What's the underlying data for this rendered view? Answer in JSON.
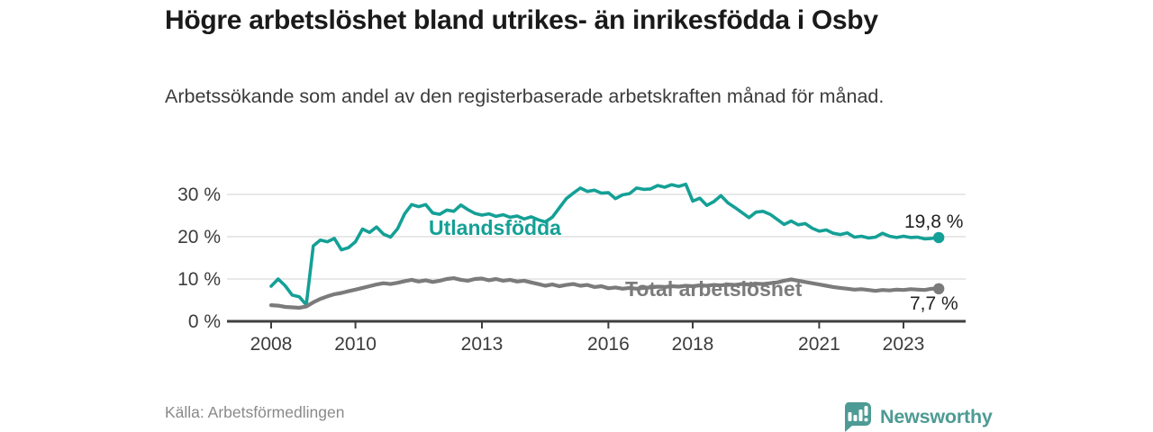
{
  "header": {
    "title": "Högre arbetslöshet bland utrikes- än inrikesfödda i Osby",
    "subtitle": "Arbetssökande som andel av den registerbaserade arbetskraften månad för månad."
  },
  "footer": {
    "source": "Källa: Arbetsförmedlingen",
    "brand": "Newsworthy"
  },
  "colors": {
    "accent_teal": "#14a096",
    "series_gray": "#7b7b7b",
    "axis": "#3f3f3f",
    "grid": "#dadada",
    "end_label_text": "#222222",
    "brand_teal": "#4d9b94",
    "title_text": "#1a1a1a",
    "muted_text": "#8a8a8a"
  },
  "chart_data": {
    "type": "line",
    "title": "Högre arbetslöshet bland utrikes- än inrikesfödda i Osby",
    "subtitle": "Arbetssökande som andel av den registerbaserade arbetskraften månad för månad.",
    "xlabel": "",
    "ylabel": "",
    "grid": "horizontal",
    "legend_position": "inline-labels",
    "x_start_year": 2008,
    "x_step_years": 0.1667,
    "x_end_year": 2023.67,
    "x_ticks": [
      2008,
      2010,
      2013,
      2016,
      2018,
      2021,
      2023
    ],
    "x_tick_labels": [
      "2008",
      "2010",
      "2013",
      "2016",
      "2018",
      "2021",
      "2023"
    ],
    "y_ticks": [
      0,
      10,
      20,
      30
    ],
    "y_tick_labels": [
      "0 %",
      "10 %",
      "20 %",
      "30 %"
    ],
    "ylim": [
      0,
      34
    ],
    "series": [
      {
        "name": "Utlandsfödda",
        "color": "#14a096",
        "end_value": 19.8,
        "end_label": "19,8 %",
        "values": [
          8.3,
          10.0,
          8.4,
          6.2,
          5.8,
          3.9,
          17.8,
          19.2,
          18.8,
          19.6,
          16.9,
          17.4,
          18.8,
          21.8,
          21.0,
          22.3,
          20.6,
          19.9,
          21.9,
          25.4,
          27.6,
          27.1,
          27.6,
          25.6,
          25.3,
          26.3,
          26.0,
          27.5,
          26.4,
          25.5,
          25.1,
          25.4,
          24.8,
          25.2,
          24.6,
          24.9,
          24.2,
          24.7,
          24.0,
          23.5,
          24.6,
          26.8,
          29.0,
          30.3,
          31.5,
          30.7,
          31.0,
          30.3,
          30.4,
          29.0,
          29.9,
          30.2,
          31.5,
          31.2,
          31.3,
          32.1,
          31.7,
          32.3,
          31.9,
          32.4,
          28.4,
          29.1,
          27.4,
          28.3,
          29.7,
          28.0,
          26.9,
          25.7,
          24.5,
          25.8,
          26.0,
          25.3,
          24.1,
          22.9,
          23.7,
          22.8,
          23.1,
          22.0,
          21.3,
          21.6,
          20.8,
          20.5,
          20.9,
          19.9,
          20.1,
          19.7,
          19.9,
          20.8,
          20.1,
          19.8,
          20.1,
          19.8,
          19.9,
          19.5,
          19.6,
          19.8
        ]
      },
      {
        "name": "Total arbetslöshet",
        "color": "#7b7b7b",
        "end_value": 7.7,
        "end_label": "7,7 %",
        "values": [
          3.8,
          3.7,
          3.4,
          3.3,
          3.2,
          3.5,
          4.5,
          5.3,
          5.9,
          6.4,
          6.7,
          7.1,
          7.5,
          7.9,
          8.3,
          8.7,
          9.0,
          8.8,
          9.1,
          9.5,
          9.8,
          9.4,
          9.7,
          9.3,
          9.6,
          10.0,
          10.2,
          9.8,
          9.6,
          10.0,
          10.1,
          9.7,
          10.0,
          9.6,
          9.8,
          9.4,
          9.6,
          9.2,
          8.8,
          8.4,
          8.7,
          8.3,
          8.6,
          8.8,
          8.4,
          8.6,
          8.1,
          8.3,
          7.8,
          8.0,
          7.7,
          7.9,
          7.7,
          7.9,
          8.0,
          8.2,
          8.1,
          8.3,
          8.2,
          8.4,
          8.3,
          8.5,
          8.4,
          8.6,
          8.5,
          8.7,
          8.6,
          8.8,
          8.7,
          8.9,
          8.8,
          9.0,
          9.2,
          9.6,
          9.9,
          9.6,
          9.3,
          9.0,
          8.7,
          8.4,
          8.1,
          7.9,
          7.7,
          7.5,
          7.6,
          7.4,
          7.2,
          7.4,
          7.3,
          7.5,
          7.4,
          7.6,
          7.5,
          7.4,
          7.7,
          7.7
        ]
      }
    ]
  }
}
